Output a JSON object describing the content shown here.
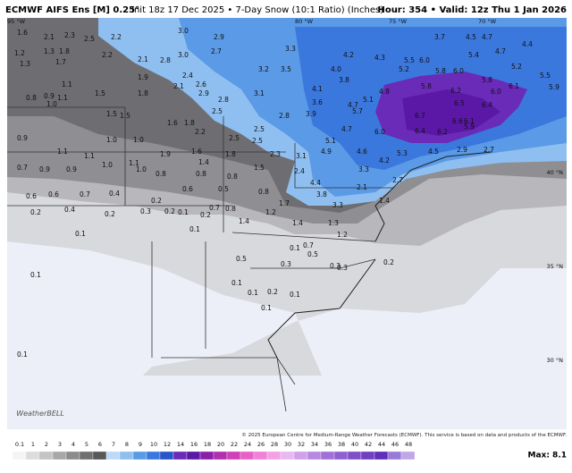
{
  "header": {
    "title": "ECMWF AIFS Ens [M] 0.25°",
    "subtitle": "Init 18z 17 Dec 2025 • 7-Day Snow (10:1 Ratio) (Inches)",
    "valid": "Hour: 354 • Valid: 12z Thu 1 Jan 2026"
  },
  "map": {
    "lon_labels": [
      "95 °W",
      "80 °W",
      "75 °W",
      "70 °W"
    ],
    "lat_labels": [
      "40 °N",
      "35 °N",
      "30 °N"
    ],
    "values": [
      "1.6",
      "2.1",
      "2.3",
      "2.5",
      "2.2",
      "1.2",
      "1.3",
      "1.8",
      "1.3",
      "1.7",
      "2.2",
      "2.1",
      "2.8",
      "3.0",
      "3.0",
      "2.9",
      "2.7",
      "2.4",
      "2.6",
      "2.1",
      "2.9",
      "1.9",
      "1.8",
      "1.5",
      "1.1",
      "0.8",
      "0.9",
      "1.1",
      "1.0",
      "1.5",
      "1.5",
      "1.6",
      "1.8",
      "2.2",
      "2.5",
      "2.8",
      "3.1",
      "3.3",
      "3.5",
      "3.2",
      "4.0",
      "3.8",
      "4.2",
      "4.3",
      "5.2",
      "5.5",
      "6.0",
      "3.7",
      "4.5",
      "4.7",
      "4.4",
      "4.7",
      "5.4",
      "5.2",
      "5.5",
      "5.9",
      "5.8",
      "6.0",
      "5.8",
      "6.2",
      "5.8",
      "6.0",
      "6.1",
      "6.5",
      "6.4",
      "6.7",
      "6.6",
      "6.1",
      "6.4",
      "6.2",
      "5.9",
      "4.8",
      "5.1",
      "5.7",
      "4.7",
      "4.1",
      "3.6",
      "3.9",
      "2.8",
      "4.7",
      "6.0",
      "5.1",
      "4.9",
      "4.6",
      "4.2",
      "5.3",
      "4.5",
      "2.9",
      "2.7",
      "3.3",
      "3.1",
      "2.4",
      "2.3",
      "1.5",
      "1.8",
      "1.4",
      "2.5",
      "2.5",
      "2.5",
      "1.6",
      "1.9",
      "1.0",
      "1.0",
      "1.1",
      "1.0",
      "0.8",
      "0.8",
      "0.6",
      "0.5",
      "0.8",
      "0.8",
      "4.4",
      "3.8",
      "3.3",
      "2.1",
      "1.4",
      "2.7",
      "0.9",
      "0.7",
      "0.9",
      "0.9",
      "1.1",
      "1.1",
      "1.0",
      "0.6",
      "0.6",
      "0.7",
      "0.4",
      "0.4",
      "0.2",
      "0.2",
      "0.2",
      "0.3",
      "0.2",
      "0.1",
      "0.2",
      "0.7",
      "0.8",
      "1.4",
      "1.2",
      "1.7",
      "1.4",
      "1.3",
      "1.2",
      "0.7",
      "0.5",
      "0.5",
      "0.3",
      "0.3",
      "0.3",
      "0.2",
      "0.1",
      "0.1",
      "0.1",
      "0.1",
      "0.1",
      "0.2",
      "0.1",
      "0.1",
      "0.1",
      "0.1"
    ]
  },
  "credit": "© 2025 European Centre for Medium-Range Weather Forecasts (ECMWF). This service is based on data and products of the ECMWF.",
  "logo": "WeatherBELL",
  "colorbar": {
    "labels": [
      "0.1",
      "1",
      "2",
      "3",
      "4",
      "5",
      "6",
      "7",
      "8",
      "9",
      "10",
      "12",
      "14",
      "16",
      "18",
      "20",
      "22",
      "24",
      "26",
      "28",
      "30",
      "32",
      "34",
      "36",
      "38",
      "40",
      "42",
      "44",
      "46",
      "48"
    ],
    "max": "Max: 8.1"
  }
}
